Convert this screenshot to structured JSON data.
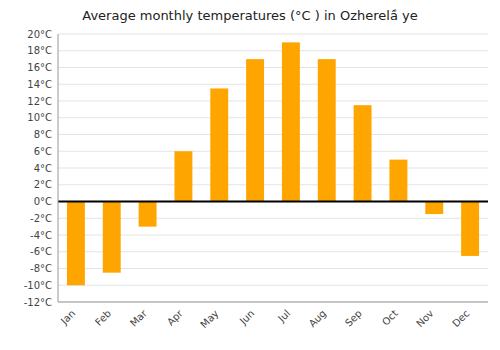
{
  "chart_data": {
    "type": "bar",
    "title": "Average monthly temperatures (°C ) in Ozherelầ ye",
    "categories": [
      "Jan",
      "Feb",
      "Mar",
      "Apr",
      "May",
      "Jun",
      "Jul",
      "Aug",
      "Sep",
      "Oct",
      "Nov",
      "Dec"
    ],
    "values": [
      -10,
      -8.5,
      -3,
      6,
      13.5,
      17,
      19,
      17,
      11.5,
      5,
      -1.5,
      -6.5
    ],
    "color": "#FFA500",
    "ylim": [
      -12,
      20
    ],
    "yticks": [
      {
        "value": -12,
        "label": "-12°C"
      },
      {
        "value": -10,
        "label": "-10°C"
      },
      {
        "value": -8,
        "label": "-8°C"
      },
      {
        "value": -6,
        "label": "-6°C"
      },
      {
        "value": -4,
        "label": "-4°C"
      },
      {
        "value": -2,
        "label": "-2°C"
      },
      {
        "value": 0,
        "label": "0°C"
      },
      {
        "value": 2,
        "label": "2°C"
      },
      {
        "value": 4,
        "label": "4°C"
      },
      {
        "value": 6,
        "label": "6°C"
      },
      {
        "value": 8,
        "label": "8°C"
      },
      {
        "value": 10,
        "label": "10°C"
      },
      {
        "value": 12,
        "label": "12°C"
      },
      {
        "value": 14,
        "label": "14°C"
      },
      {
        "value": 16,
        "label": "16°C"
      },
      {
        "value": 18,
        "label": "18°C"
      },
      {
        "value": 20,
        "label": "20°C"
      }
    ],
    "grid": true
  }
}
